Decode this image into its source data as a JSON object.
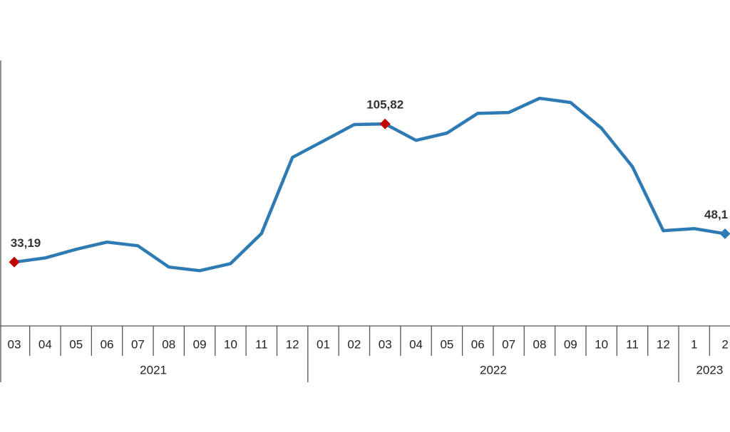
{
  "chart_data": {
    "type": "line",
    "categories": [
      "03",
      "04",
      "05",
      "06",
      "07",
      "08",
      "09",
      "10",
      "11",
      "12",
      "01",
      "02",
      "03",
      "04",
      "05",
      "06",
      "07",
      "08",
      "09",
      "10",
      "11",
      "12",
      "1",
      "2"
    ],
    "groups": [
      {
        "label": "2021",
        "span": 10
      },
      {
        "label": "2022",
        "span": 12
      },
      {
        "label": "2023",
        "span": 2
      }
    ],
    "series": [
      {
        "color": "#2e7bb4",
        "values": [
          33.19,
          35.4,
          39.9,
          43.7,
          41.8,
          30.6,
          28.7,
          32.4,
          48.2,
          88.2,
          96.8,
          105.5,
          105.82,
          97.2,
          101.0,
          111.4,
          111.8,
          119.3,
          117.1,
          103.6,
          83.4,
          49.7,
          50.8,
          48.1
        ],
        "value_labels": [
          "33,19",
          null,
          null,
          null,
          null,
          null,
          null,
          null,
          null,
          null,
          null,
          null,
          "105,82",
          null,
          null,
          null,
          null,
          null,
          null,
          null,
          null,
          null,
          null,
          "48,1"
        ],
        "marker_colors": [
          "#c00000",
          null,
          null,
          null,
          null,
          null,
          null,
          null,
          null,
          null,
          null,
          null,
          "#c00000",
          null,
          null,
          null,
          null,
          null,
          null,
          null,
          null,
          null,
          null,
          "#2e7bb4"
        ]
      }
    ],
    "ylim": [
      0,
      150
    ]
  }
}
